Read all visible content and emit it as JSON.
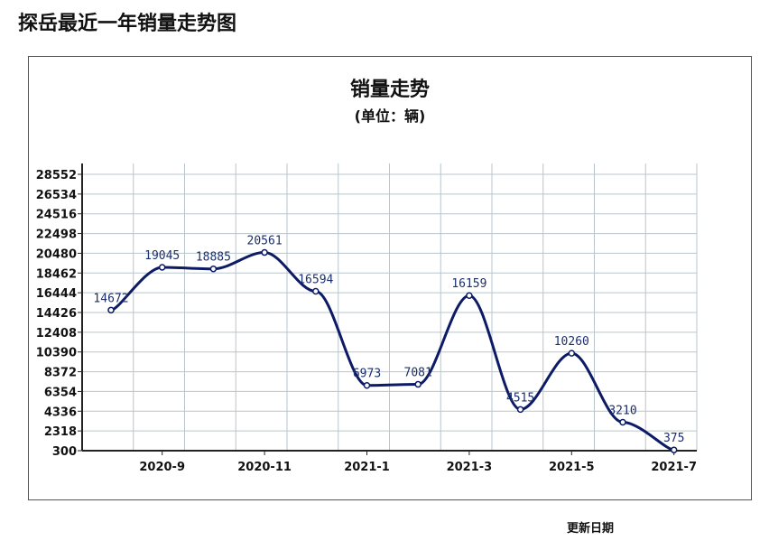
{
  "page_title": "探岳最近一年销量走势图",
  "footer": {
    "update_date_label": "更新日期"
  },
  "colors": {
    "line": "#0d1a66",
    "grid": "#b9c6cc",
    "axis": "#222222"
  },
  "chart_data": {
    "type": "line",
    "title": "销量走势",
    "subtitle": "(单位：辆)",
    "xlabel": "",
    "ylabel": "",
    "x": [
      "2020-8",
      "2020-9",
      "2020-10",
      "2020-11",
      "2020-12",
      "2021-1",
      "2021-2",
      "2021-3",
      "2021-4",
      "2021-5",
      "2021-6",
      "2021-7"
    ],
    "x_tick_labels": [
      "2020-9",
      "2020-11",
      "2021-1",
      "2021-3",
      "2021-5",
      "2021-7"
    ],
    "y_tick_labels": [
      300,
      2318,
      4336,
      6354,
      8372,
      10390,
      12408,
      14426,
      16444,
      18462,
      20480,
      22498,
      24516,
      26534,
      28552
    ],
    "ylim": [
      300,
      28552
    ],
    "grid": true,
    "series": [
      {
        "values": [
          14672,
          19045,
          18885,
          20561,
          16594,
          6973,
          7081,
          16159,
          4515,
          10260,
          3210,
          375
        ]
      }
    ]
  }
}
